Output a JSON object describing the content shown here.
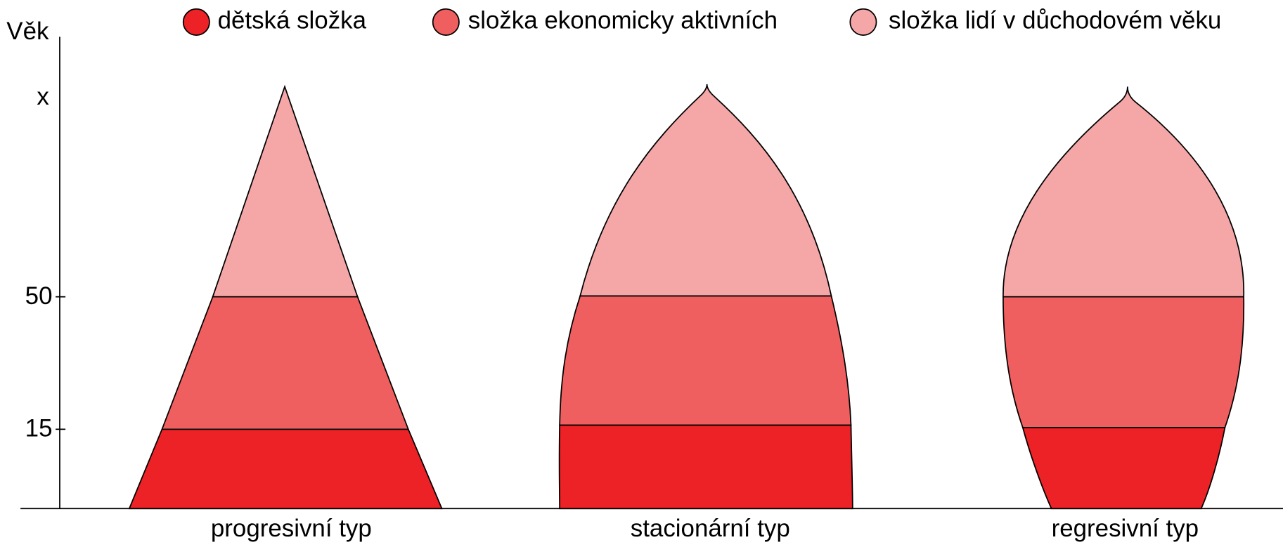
{
  "legend": {
    "items": [
      "dětská složka",
      "složka ekonomicky aktivních",
      "složka lidí v důchodovém věku"
    ]
  },
  "axis": {
    "label": "Věk",
    "ticks": [
      "x",
      "50",
      "15"
    ]
  },
  "pyramids": [
    {
      "label": "progresivní typ"
    },
    {
      "label": "stacionární typ"
    },
    {
      "label": "regresivní typ"
    }
  ]
}
